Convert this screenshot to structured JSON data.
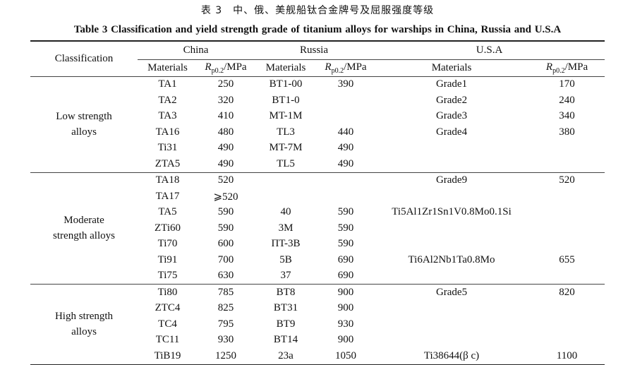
{
  "title_cn": "表 3　中、俄、美舰船钛合金牌号及屈服强度等级",
  "title_en": "Table 3    Classification and yield strength grade of titanium alloys for warships in China, Russia and U.S.A",
  "header": {
    "classification": "Classification",
    "china": "China",
    "russia": "Russia",
    "usa": "U.S.A",
    "materials": "Materials",
    "rp_symbol": "R",
    "rp_sub": "p0.2",
    "rp_unit": "/MPa"
  },
  "groups": [
    {
      "name": "Low strength alloys",
      "rows": [
        [
          "TA1",
          "250",
          "BT1-00",
          "390",
          "Grade1",
          "170"
        ],
        [
          "TA2",
          "320",
          "BT1-0",
          "",
          "Grade2",
          "240"
        ],
        [
          "TA3",
          "410",
          "MT-1M",
          "",
          "Grade3",
          "340"
        ],
        [
          "TA16",
          "480",
          "TL3",
          "440",
          "Grade4",
          "380"
        ],
        [
          "Ti31",
          "490",
          "MT-7M",
          "490",
          "",
          ""
        ],
        [
          "ZTA5",
          "490",
          "TL5",
          "490",
          "",
          ""
        ]
      ]
    },
    {
      "name": "Moderate strength alloys",
      "rows": [
        [
          "TA18",
          "520",
          "",
          "",
          "Grade9",
          "520"
        ],
        [
          "TA17",
          "⩾520",
          "",
          "",
          "",
          ""
        ],
        [
          "TA5",
          "590",
          "40",
          "590",
          "Ti5Al1Zr1Sn1V0.8Mo0.1Si",
          ""
        ],
        [
          "ZTi60",
          "590",
          "3M",
          "590",
          "",
          ""
        ],
        [
          "Ti70",
          "600",
          "ΠT-3B",
          "590",
          "",
          ""
        ],
        [
          "Ti91",
          "700",
          "5B",
          "690",
          "Ti6Al2Nb1Ta0.8Mo",
          "655"
        ],
        [
          "Ti75",
          "630",
          "37",
          "690",
          "",
          ""
        ]
      ]
    },
    {
      "name": "High strength alloys",
      "rows": [
        [
          "Ti80",
          "785",
          "BT8",
          "900",
          "Grade5",
          "820"
        ],
        [
          "ZTC4",
          "825",
          "BT31",
          "900",
          "",
          ""
        ],
        [
          "TC4",
          "795",
          "BT9",
          "930",
          "",
          ""
        ],
        [
          "TC11",
          "930",
          "BT14",
          "900",
          "",
          ""
        ],
        [
          "TiB19",
          "1250",
          "23a",
          "1050",
          "Ti38644(β c)",
          "1100"
        ]
      ]
    }
  ]
}
